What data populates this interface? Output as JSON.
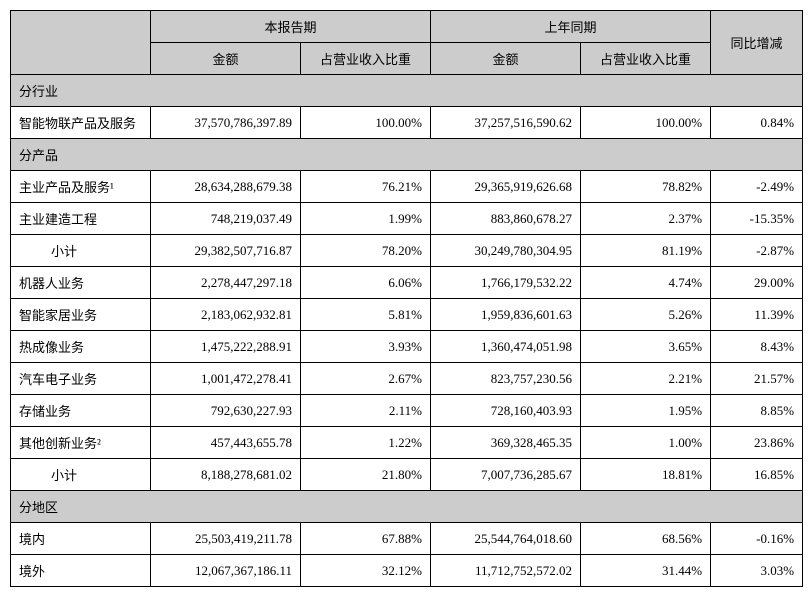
{
  "header": {
    "blank": "",
    "current_period": "本报告期",
    "prior_period": "上年同期",
    "yoy_change": "同比增减",
    "amount": "金额",
    "revenue_ratio": "占营业收入比重"
  },
  "sections": {
    "by_industry": "分行业",
    "by_product": "分产品",
    "by_region": "分地区"
  },
  "rows": {
    "industry_smart": {
      "label": "智能物联产品及服务",
      "cur_amt": "37,570,786,397.89",
      "cur_pct": "100.00%",
      "pri_amt": "37,257,516,590.62",
      "pri_pct": "100.00%",
      "yoy": "0.84%"
    },
    "main_product": {
      "label": "主业产品及服务¹",
      "cur_amt": "28,634,288,679.38",
      "cur_pct": "76.21%",
      "pri_amt": "29,365,919,626.68",
      "pri_pct": "78.82%",
      "yoy": "-2.49%"
    },
    "main_construct": {
      "label": "主业建造工程",
      "cur_amt": "748,219,037.49",
      "cur_pct": "1.99%",
      "pri_amt": "883,860,678.27",
      "pri_pct": "2.37%",
      "yoy": "-15.35%"
    },
    "subtotal1": {
      "label": "小计",
      "cur_amt": "29,382,507,716.87",
      "cur_pct": "78.20%",
      "pri_amt": "30,249,780,304.95",
      "pri_pct": "81.19%",
      "yoy": "-2.87%"
    },
    "robot": {
      "label": "机器人业务",
      "cur_amt": "2,278,447,297.18",
      "cur_pct": "6.06%",
      "pri_amt": "1,766,179,532.22",
      "pri_pct": "4.74%",
      "yoy": "29.00%"
    },
    "smart_home": {
      "label": "智能家居业务",
      "cur_amt": "2,183,062,932.81",
      "cur_pct": "5.81%",
      "pri_amt": "1,959,836,601.63",
      "pri_pct": "5.26%",
      "yoy": "11.39%"
    },
    "thermal": {
      "label": "热成像业务",
      "cur_amt": "1,475,222,288.91",
      "cur_pct": "3.93%",
      "pri_amt": "1,360,474,051.98",
      "pri_pct": "3.65%",
      "yoy": "8.43%"
    },
    "auto_elec": {
      "label": "汽车电子业务",
      "cur_amt": "1,001,472,278.41",
      "cur_pct": "2.67%",
      "pri_amt": "823,757,230.56",
      "pri_pct": "2.21%",
      "yoy": "21.57%"
    },
    "storage": {
      "label": "存储业务",
      "cur_amt": "792,630,227.93",
      "cur_pct": "2.11%",
      "pri_amt": "728,160,403.93",
      "pri_pct": "1.95%",
      "yoy": "8.85%"
    },
    "other_innov": {
      "label": "其他创新业务²",
      "cur_amt": "457,443,655.78",
      "cur_pct": "1.22%",
      "pri_amt": "369,328,465.35",
      "pri_pct": "1.00%",
      "yoy": "23.86%"
    },
    "subtotal2": {
      "label": "小计",
      "cur_amt": "8,188,278,681.02",
      "cur_pct": "21.80%",
      "pri_amt": "7,007,736,285.67",
      "pri_pct": "18.81%",
      "yoy": "16.85%"
    },
    "domestic": {
      "label": "境内",
      "cur_amt": "25,503,419,211.78",
      "cur_pct": "67.88%",
      "pri_amt": "25,544,764,018.60",
      "pri_pct": "68.56%",
      "yoy": "-0.16%"
    },
    "overseas": {
      "label": "境外",
      "cur_amt": "12,067,367,186.11",
      "cur_pct": "32.12%",
      "pri_amt": "11,712,752,572.02",
      "pri_pct": "31.44%",
      "yoy": "3.03%"
    }
  }
}
